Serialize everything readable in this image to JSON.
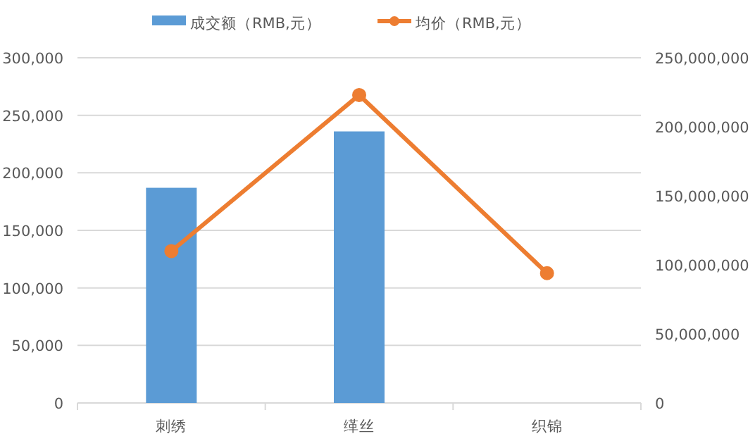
{
  "chart_data": {
    "type": "bar",
    "categories": [
      "刺绣",
      "缂丝",
      "织锦"
    ],
    "series": [
      {
        "name": "成交额（RMB,元）",
        "color": "#5b9bd5",
        "values": [
          187000,
          236000,
          null
        ]
      },
      {
        "name": "均价（RMB,元）",
        "type": "line",
        "axis": "y2",
        "color": "#ed7d31",
        "marker": "circle",
        "values": [
          110000000,
          223000000,
          94000000
        ]
      }
    ],
    "ylim": [
      0,
      300000
    ],
    "yticks": [
      0,
      {
        "value": 50000,
        "label": "50,000"
      },
      {
        "value": 100000,
        "label": "100,000"
      },
      {
        "value": 150000,
        "label": "150,000"
      },
      {
        "value": 200000,
        "label": "200,000"
      },
      {
        "value": 250000,
        "label": "250,000"
      },
      {
        "value": 300000,
        "label": "300,000"
      }
    ],
    "y2lim": [
      0,
      250000000
    ],
    "y2ticks": [
      0,
      {
        "value": 50000000,
        "label": "50,000,000"
      },
      {
        "value": 100000000,
        "label": "100,000,000"
      },
      {
        "value": 150000000,
        "label": "150,000,000"
      },
      {
        "value": 200000000,
        "label": "200,000,000"
      },
      {
        "value": 250000000,
        "label": "250,000,000"
      }
    ],
    "grid": "y",
    "legend": "top"
  }
}
